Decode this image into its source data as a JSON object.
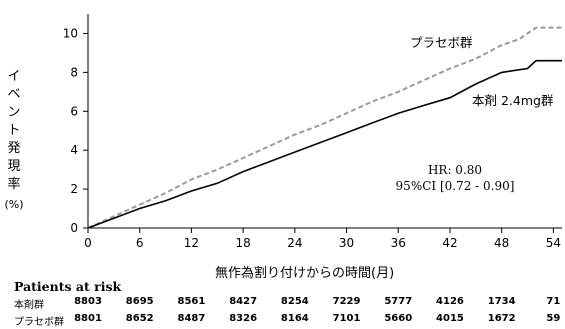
{
  "chart_data": {
    "type": "line",
    "xlabel": "無作為割り付けからの時間(月)",
    "ylabel_chars": [
      "イ",
      "ベ",
      "ン",
      "ト",
      "発",
      "現",
      "率"
    ],
    "ylabel_unit": "(%)",
    "xlim": [
      0,
      55
    ],
    "ylim": [
      0,
      11
    ],
    "x_ticks": [
      0,
      6,
      12,
      18,
      24,
      30,
      36,
      42,
      48,
      54
    ],
    "y_ticks": [
      0,
      2,
      4,
      6,
      8,
      10
    ],
    "series": [
      {
        "name": "プラセボ群",
        "style": "dashed",
        "color": "#9b9b9b",
        "x": [
          0,
          3,
          6,
          9,
          12,
          15,
          18,
          21,
          24,
          27,
          30,
          33,
          36,
          39,
          42,
          45,
          48,
          50,
          52,
          55
        ],
        "y": [
          0,
          0.6,
          1.2,
          1.8,
          2.5,
          3.0,
          3.6,
          4.2,
          4.8,
          5.3,
          5.9,
          6.5,
          7.0,
          7.6,
          8.2,
          8.7,
          9.4,
          9.7,
          10.3,
          10.3
        ]
      },
      {
        "name": "本剤 2.4mg群",
        "style": "solid",
        "color": "#000000",
        "x": [
          0,
          3,
          6,
          9,
          12,
          15,
          18,
          21,
          24,
          27,
          30,
          33,
          36,
          39,
          42,
          45,
          48,
          51,
          52,
          55
        ],
        "y": [
          0,
          0.5,
          1.0,
          1.4,
          1.9,
          2.3,
          2.9,
          3.4,
          3.9,
          4.4,
          4.9,
          5.4,
          5.9,
          6.3,
          6.7,
          7.4,
          8.0,
          8.2,
          8.6,
          8.6
        ]
      }
    ],
    "annotations": {
      "hr": "HR: 0.80",
      "ci": "95%CI [0.72 - 0.90]"
    }
  },
  "risk_table": {
    "title": "Patients at risk",
    "rows": [
      {
        "name": "本剤群",
        "values": [
          "8803",
          "8695",
          "8561",
          "8427",
          "8254",
          "7229",
          "5777",
          "4126",
          "1734",
          "71"
        ]
      },
      {
        "name": "プラセボ群",
        "values": [
          "8801",
          "8652",
          "8487",
          "8326",
          "8164",
          "7101",
          "5660",
          "4015",
          "1672",
          "59"
        ]
      }
    ]
  }
}
